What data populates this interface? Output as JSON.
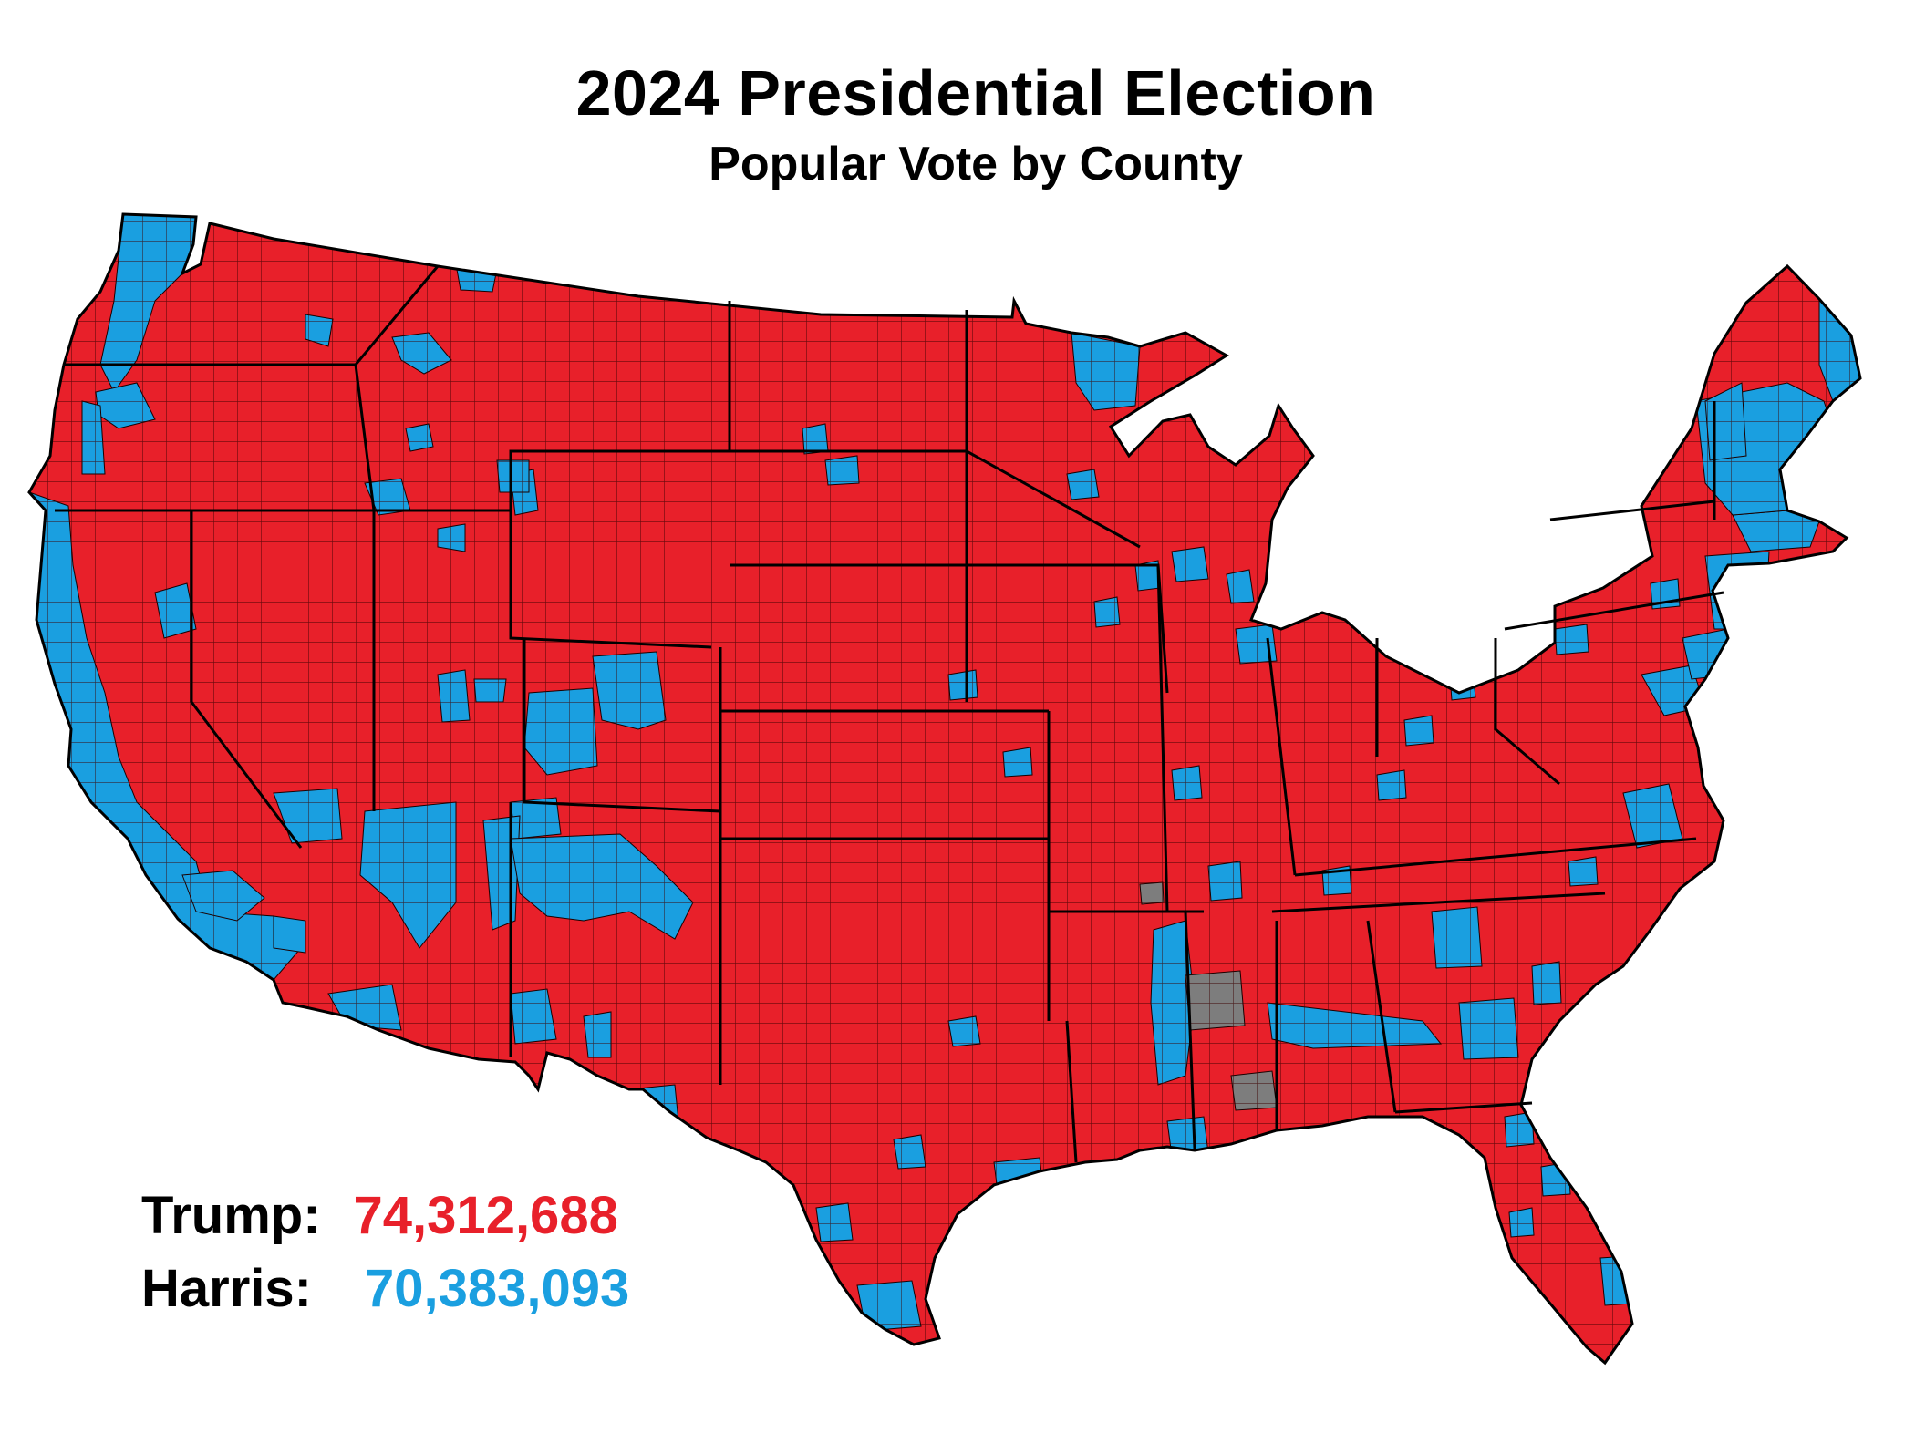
{
  "title": "2024 Presidential Election",
  "subtitle": "Popular Vote by County",
  "colors": {
    "trump": "#e8202a",
    "harris": "#1a9fe0",
    "no_data": "#7d7d7d",
    "county_border": "#1a0000",
    "state_border": "#000000"
  },
  "legend": [
    {
      "name": "Trump:",
      "value": "74,312,688",
      "color_key": "trump"
    },
    {
      "name": "Harris:",
      "value": "70,383,093",
      "color_key": "harris"
    }
  ]
}
